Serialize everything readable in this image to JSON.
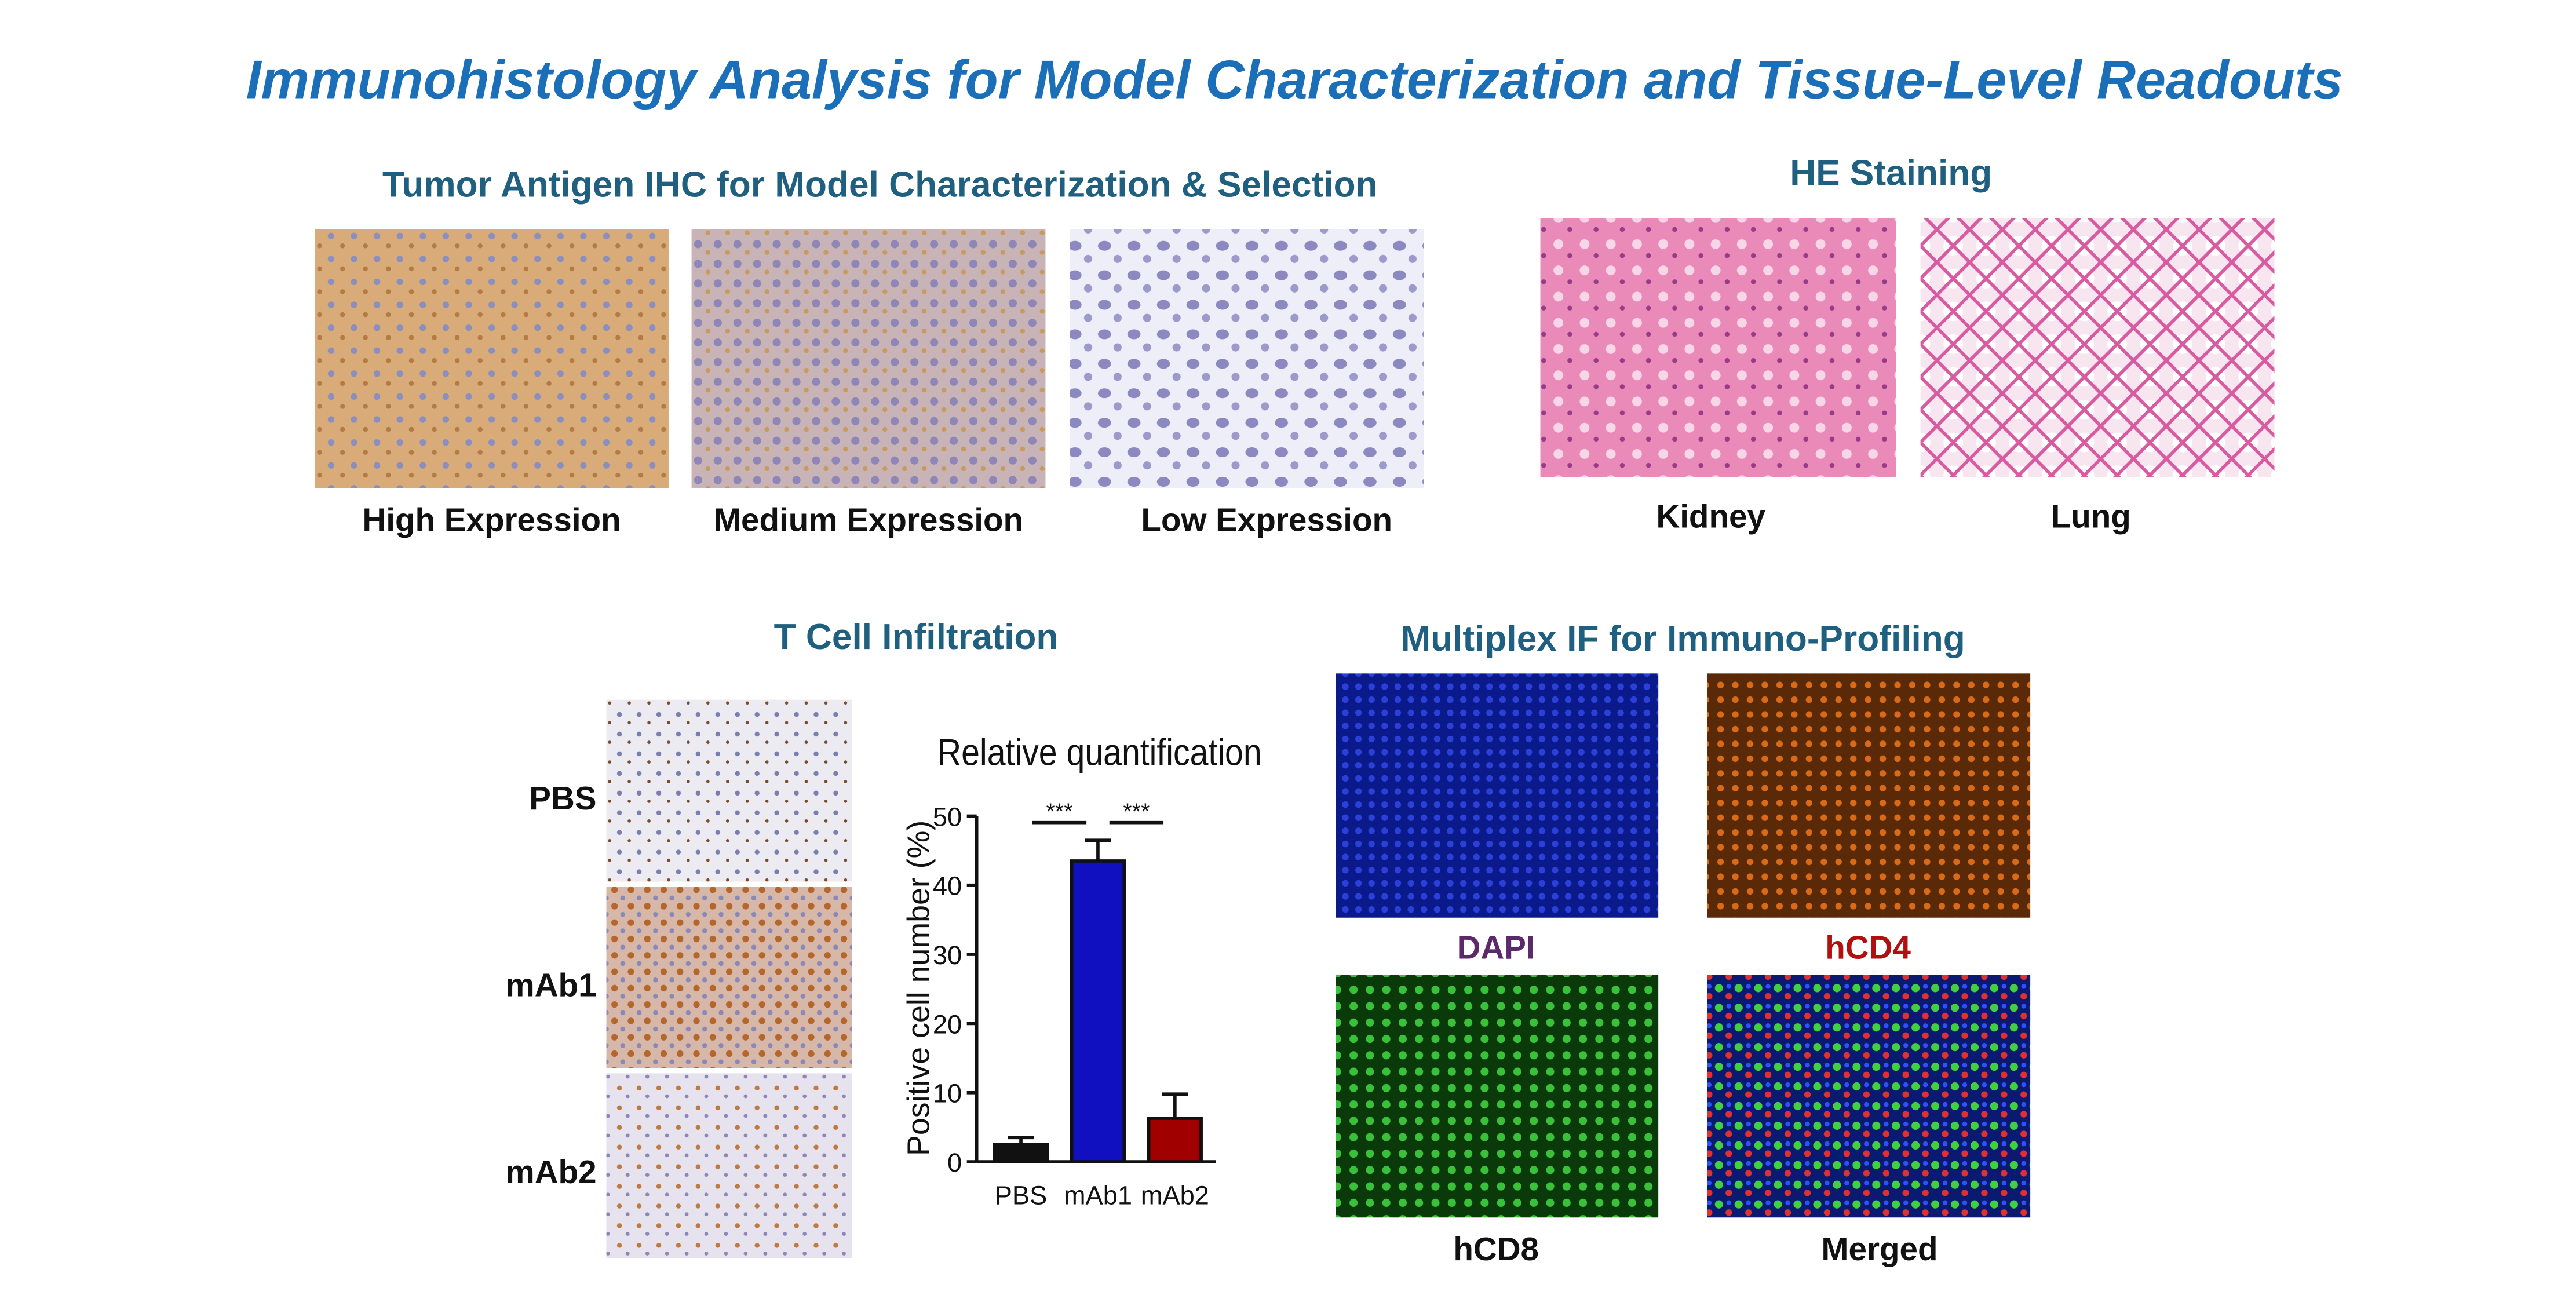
{
  "title": "Immunohistology Analysis for Model Characterization and Tissue-Level Readouts",
  "ihc": {
    "heading": "Tumor Antigen IHC for Model Characterization & Selection",
    "labels": [
      "High Expression",
      "Medium Expression",
      "Low Expression"
    ]
  },
  "he": {
    "heading": "HE Staining",
    "labels": [
      "Kidney",
      "Lung"
    ]
  },
  "tcell": {
    "heading": "T Cell Infiltration",
    "labels": [
      "PBS",
      "mAb1",
      "mAb2"
    ]
  },
  "mif": {
    "heading": "Multiplex IF for Immuno-Profiling",
    "labels": [
      "DAPI",
      "hCD4",
      "hCD8",
      "Merged"
    ]
  },
  "chart_data": {
    "type": "bar",
    "title": "Relative quantification",
    "y_label": "Positive cell number  (%)",
    "categories": [
      "PBS",
      "mAb1",
      "mAb2"
    ],
    "values": [
      2.5,
      43.5,
      6.3
    ],
    "errors": [
      1,
      3,
      3.5
    ],
    "colors": [
      "#111111",
      "#1010c0",
      "#a00000"
    ],
    "ylim": [
      0,
      50
    ],
    "yticks": [
      0,
      10,
      20,
      30,
      40,
      50
    ],
    "significance": [
      "***",
      "***"
    ]
  }
}
